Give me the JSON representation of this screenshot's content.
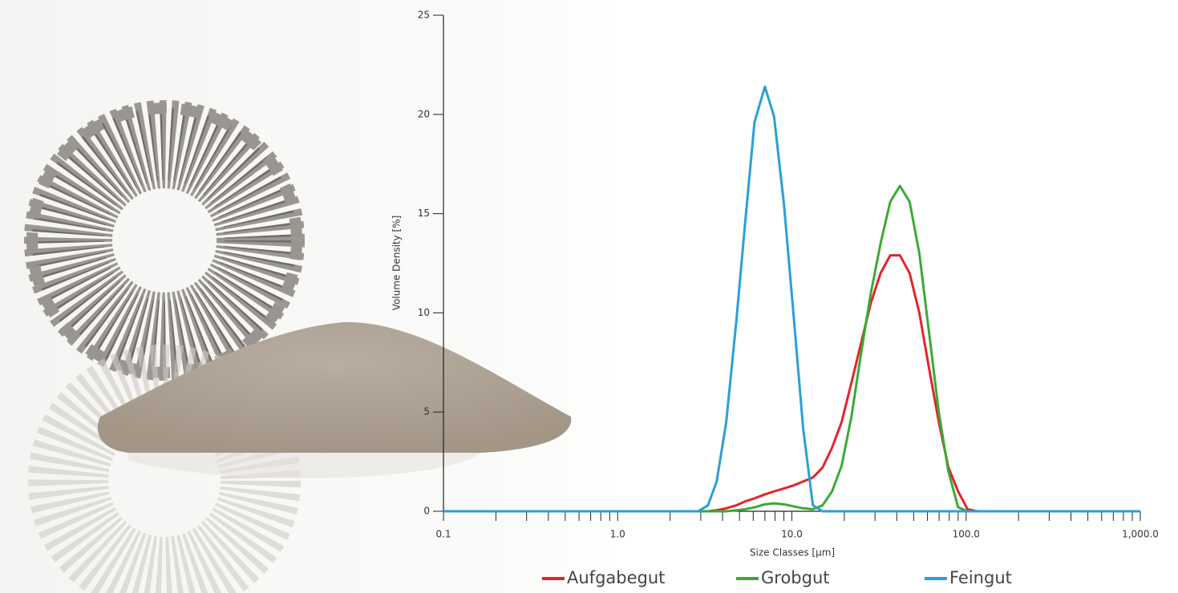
{
  "chart_data": {
    "type": "line",
    "y_label": "Volume Density [%]",
    "x_label": "Size Classes [µm]",
    "xscale": "log",
    "xlim": [
      0.1,
      1000
    ],
    "xticks": [
      {
        "value": 0.1,
        "label": "0.1"
      },
      {
        "value": 1,
        "label": "1.0"
      },
      {
        "value": 10,
        "label": "10.0"
      },
      {
        "value": 100,
        "label": "100.0"
      },
      {
        "value": 1000,
        "label": "1,000.0"
      }
    ],
    "xminorticks": [
      0.2,
      0.3,
      0.4,
      0.5,
      0.6,
      0.7,
      0.8,
      0.9,
      2,
      3,
      4,
      5,
      6,
      7,
      8,
      9,
      20,
      30,
      40,
      50,
      60,
      70,
      80,
      90,
      200,
      300,
      400,
      500,
      600,
      700,
      800,
      900
    ],
    "ylim": [
      0,
      25
    ],
    "yticks": [
      0,
      5,
      10,
      15,
      20,
      25
    ],
    "legend": "bottom",
    "x": [
      0.1,
      1.0,
      2.9,
      3.3,
      3.7,
      4.2,
      4.8,
      5.4,
      6.1,
      7.0,
      7.9,
      9.0,
      10.2,
      11.6,
      13.2,
      15.0,
      17.0,
      19.3,
      22.0,
      25.0,
      28.4,
      32.3,
      36.7,
      41.7,
      47.4,
      53.9,
      61.3,
      69.7,
      79.2,
      90.0,
      102,
      116,
      200,
      1000
    ],
    "series": [
      {
        "name": "Aufgabegut",
        "color": "#e0262b",
        "values": [
          0,
          0,
          0,
          0,
          0.05,
          0.15,
          0.3,
          0.5,
          0.65,
          0.85,
          1.0,
          1.15,
          1.3,
          1.5,
          1.7,
          2.2,
          3.2,
          4.5,
          6.5,
          8.5,
          10.5,
          12,
          12.9,
          12.9,
          12,
          10,
          7.2,
          4.5,
          2.2,
          1,
          0.1,
          0,
          0,
          0
        ]
      },
      {
        "name": "Grobgut",
        "color": "#3aaa35",
        "values": [
          0,
          0,
          0,
          0,
          0,
          0,
          0.05,
          0.1,
          0.2,
          0.35,
          0.4,
          0.35,
          0.25,
          0.15,
          0.1,
          0.3,
          1,
          2.3,
          4.8,
          8,
          11,
          13.5,
          15.6,
          16.4,
          15.6,
          13,
          9,
          5,
          2,
          0.2,
          0,
          0,
          0,
          0
        ]
      },
      {
        "name": "Feingut",
        "color": "#2a9fd8",
        "values": [
          0,
          0,
          0,
          0.3,
          1.5,
          4.5,
          9.6,
          14.6,
          19.6,
          21.4,
          19.9,
          15.5,
          10,
          4.2,
          0.3,
          0,
          0,
          0,
          0,
          0,
          0,
          0,
          0,
          0,
          0,
          0,
          0,
          0,
          0,
          0,
          0,
          0,
          0,
          0
        ]
      }
    ]
  }
}
